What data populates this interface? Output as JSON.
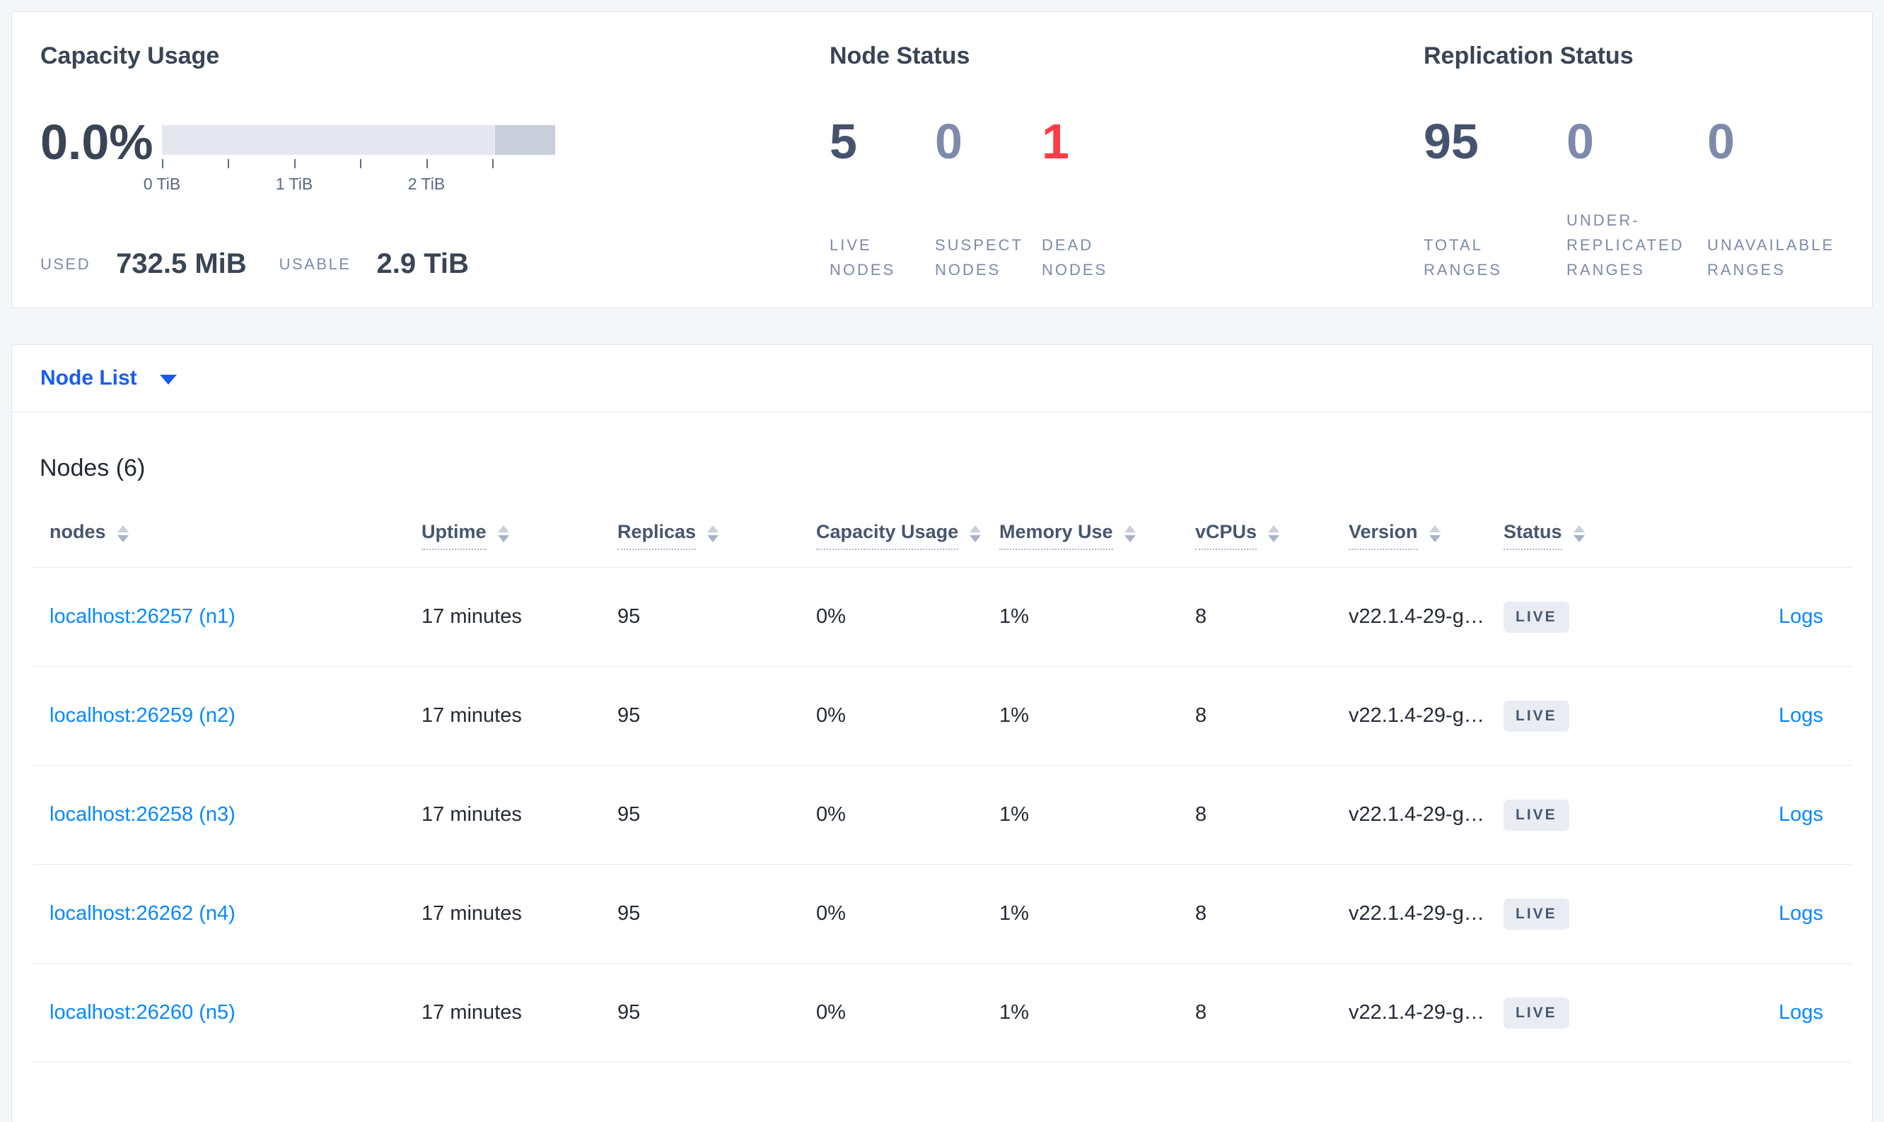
{
  "colors": {
    "live_number": "#46536d",
    "zero_number": "#7e8aab",
    "dead_number": "#ff3b45",
    "link_blue": "#0788ff",
    "selector_blue": "#1a5cf0"
  },
  "capacity": {
    "title": "Capacity Usage",
    "percent": "0.0%",
    "tick_labels": [
      "0 TiB",
      "1 TiB",
      "2 TiB"
    ],
    "used_label": "USED",
    "used_value": "732.5 MiB",
    "usable_label": "USABLE",
    "usable_value": "2.9 TiB"
  },
  "node_status": {
    "title": "Node Status",
    "stats": [
      {
        "value": "5",
        "label": "LIVE NODES",
        "color": "#46536d"
      },
      {
        "value": "0",
        "label": "SUSPECT NODES",
        "color": "#7e8aab"
      },
      {
        "value": "1",
        "label": "DEAD NODES",
        "color": "#ff3b45"
      }
    ]
  },
  "replication_status": {
    "title": "Replication Status",
    "stats": [
      {
        "value": "95",
        "label": "TOTAL RANGES",
        "color": "#46536d"
      },
      {
        "value": "0",
        "label": "UNDER-REPLICATED RANGES",
        "color": "#7e8aab"
      },
      {
        "value": "0",
        "label": "UNAVAILABLE RANGES",
        "color": "#7e8aab"
      }
    ]
  },
  "view_selector": {
    "label": "Node List"
  },
  "nodes_section": {
    "heading": "Nodes (6)",
    "columns": [
      {
        "label": "nodes",
        "underline": "false"
      },
      {
        "label": "Uptime",
        "underline": "true"
      },
      {
        "label": "Replicas",
        "underline": "true"
      },
      {
        "label": "Capacity Usage",
        "underline": "true"
      },
      {
        "label": "Memory Use",
        "underline": "true"
      },
      {
        "label": "vCPUs",
        "underline": "true"
      },
      {
        "label": "Version",
        "underline": "true"
      },
      {
        "label": "Status",
        "underline": "true"
      }
    ],
    "rows": [
      {
        "node": "localhost:26257 (n1)",
        "uptime": "17 minutes",
        "replicas": "95",
        "capacity_usage": "0%",
        "memory_use": "1%",
        "vcpus": "8",
        "version": "v22.1.4-29-g…",
        "status": "LIVE",
        "logs": "Logs"
      },
      {
        "node": "localhost:26259 (n2)",
        "uptime": "17 minutes",
        "replicas": "95",
        "capacity_usage": "0%",
        "memory_use": "1%",
        "vcpus": "8",
        "version": "v22.1.4-29-g…",
        "status": "LIVE",
        "logs": "Logs"
      },
      {
        "node": "localhost:26258 (n3)",
        "uptime": "17 minutes",
        "replicas": "95",
        "capacity_usage": "0%",
        "memory_use": "1%",
        "vcpus": "8",
        "version": "v22.1.4-29-g…",
        "status": "LIVE",
        "logs": "Logs"
      },
      {
        "node": "localhost:26262 (n4)",
        "uptime": "17 minutes",
        "replicas": "95",
        "capacity_usage": "0%",
        "memory_use": "1%",
        "vcpus": "8",
        "version": "v22.1.4-29-g…",
        "status": "LIVE",
        "logs": "Logs"
      },
      {
        "node": "localhost:26260 (n5)",
        "uptime": "17 minutes",
        "replicas": "95",
        "capacity_usage": "0%",
        "memory_use": "1%",
        "vcpus": "8",
        "version": "v22.1.4-29-g…",
        "status": "LIVE",
        "logs": "Logs"
      }
    ]
  }
}
